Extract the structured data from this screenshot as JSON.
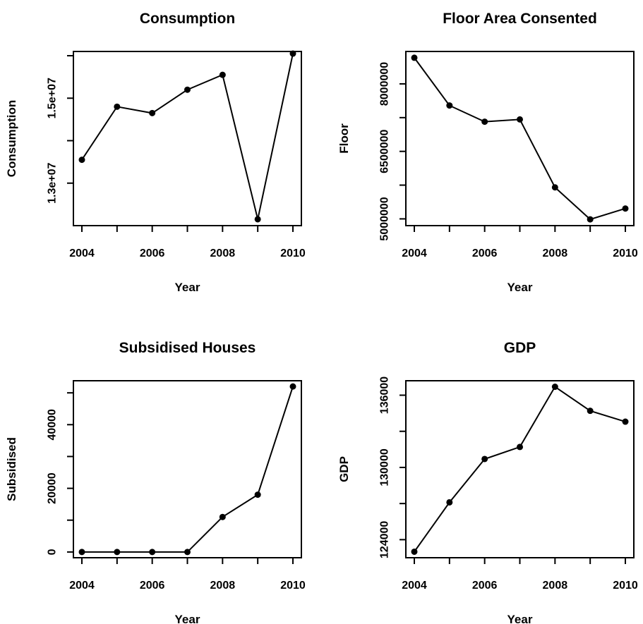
{
  "chart_data": [
    {
      "type": "line",
      "title": "Consumption",
      "xlabel": "Year",
      "ylabel": "Consumption",
      "x": [
        2004,
        2005,
        2006,
        2007,
        2008,
        2009,
        2010
      ],
      "series": [
        {
          "values": [
            13550000,
            14800000,
            14650000,
            15200000,
            15550000,
            12150000,
            16050000
          ]
        }
      ],
      "xlim": [
        2004,
        2010
      ],
      "ylim": [
        12000000,
        16100000
      ],
      "xticks": [
        2004,
        2006,
        2008,
        2010
      ],
      "yticks": [
        13000000,
        14000000,
        15000000,
        16000000
      ],
      "ytick_labels": [
        "1.3e+07",
        "",
        "1.5e+07",
        ""
      ],
      "grid": false,
      "legend": "none",
      "line_color": "#000000",
      "marker": "filled-circle"
    },
    {
      "type": "line",
      "title": "Floor Area Consented",
      "xlabel": "Year",
      "ylabel": "Floor",
      "x": [
        2004,
        2005,
        2006,
        2007,
        2008,
        2009,
        2010
      ],
      "series": [
        {
          "values": [
            8580000,
            7520000,
            7160000,
            7210000,
            5700000,
            4990000,
            5230000
          ]
        }
      ],
      "xlim": [
        2004,
        2010
      ],
      "ylim": [
        4850000,
        8720000
      ],
      "xticks": [
        2004,
        2006,
        2008,
        2010
      ],
      "yticks": [
        5000000,
        5750000,
        6500000,
        7250000,
        8000000
      ],
      "ytick_labels": [
        "5000000",
        "",
        "6500000",
        "",
        "8000000"
      ],
      "grid": false,
      "legend": "none",
      "line_color": "#000000",
      "marker": "filled-circle"
    },
    {
      "type": "line",
      "title": "Subsidised Houses",
      "xlabel": "Year",
      "ylabel": "Subsidised",
      "x": [
        2004,
        2005,
        2006,
        2007,
        2008,
        2009,
        2010
      ],
      "series": [
        {
          "values": [
            0,
            0,
            0,
            0,
            11000,
            18000,
            52000
          ]
        }
      ],
      "xlim": [
        2004,
        2010
      ],
      "ylim": [
        -1800,
        53800
      ],
      "xticks": [
        2004,
        2006,
        2008,
        2010
      ],
      "yticks": [
        0,
        10000,
        20000,
        30000,
        40000,
        50000
      ],
      "ytick_labels": [
        "0",
        "",
        "20000",
        "",
        "40000",
        ""
      ],
      "grid": false,
      "legend": "none",
      "line_color": "#000000",
      "marker": "filled-circle"
    },
    {
      "type": "line",
      "title": "GDP",
      "xlabel": "Year",
      "ylabel": "GDP",
      "x": [
        2004,
        2005,
        2006,
        2007,
        2008,
        2009,
        2010
      ],
      "series": [
        {
          "values": [
            123000,
            127100,
            130700,
            131700,
            136700,
            134700,
            133800
          ]
        }
      ],
      "xlim": [
        2004,
        2010
      ],
      "ylim": [
        122500,
        137200
      ],
      "xticks": [
        2004,
        2006,
        2008,
        2010
      ],
      "yticks": [
        124000,
        127000,
        130000,
        133000,
        136000
      ],
      "ytick_labels": [
        "124000",
        "",
        "130000",
        "",
        "136000"
      ],
      "grid": false,
      "legend": "none",
      "line_color": "#000000",
      "marker": "filled-circle"
    }
  ]
}
